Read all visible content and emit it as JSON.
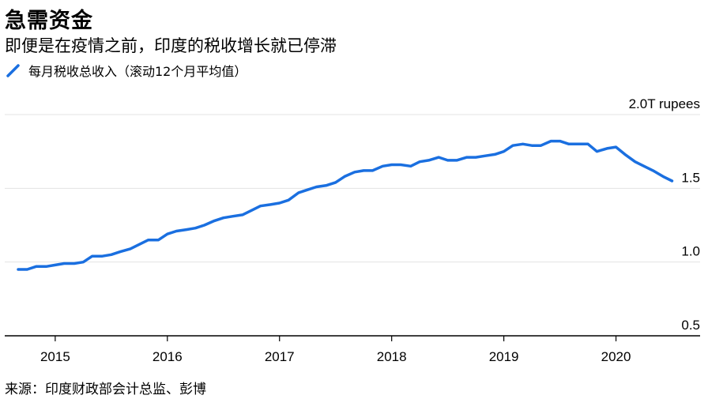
{
  "header": {
    "title": "急需资金",
    "subtitle": "即便是在疫情之前，印度的税收增长就已停滞"
  },
  "legend": {
    "label": "每月税收总收入（滚动12个月平均值）"
  },
  "footer": {
    "source": "来源：印度财政部会计总监、彭博"
  },
  "colors": {
    "line": "#1a6fe0",
    "grid": "#e3e3e3",
    "axis": "#000000"
  },
  "chart_data": {
    "type": "line",
    "title": "急需资金",
    "subtitle": "即便是在疫情之前，印度的税收增长就已停滞",
    "ylabel": "",
    "y_unit_label": "2.0T rupees",
    "ylim": [
      0.5,
      2.0
    ],
    "yticks": [
      0.5,
      1.0,
      1.5,
      2.0
    ],
    "ytick_labels": [
      "0.5",
      "1.0",
      "1.5",
      "2.0T rupees"
    ],
    "xlim": [
      2014.55,
      2020.75
    ],
    "xticks": [
      2015,
      2016,
      2017,
      2018,
      2019,
      2020
    ],
    "xtick_labels": [
      "2015",
      "2016",
      "2017",
      "2018",
      "2019",
      "2020"
    ],
    "grid": true,
    "legend_position": "top-left",
    "series": [
      {
        "name": "每月税收总收入（滚动12个月平均值）",
        "x": [
          2014.67,
          2014.75,
          2014.83,
          2014.92,
          2015.0,
          2015.08,
          2015.17,
          2015.25,
          2015.33,
          2015.42,
          2015.5,
          2015.58,
          2015.67,
          2015.75,
          2015.83,
          2015.92,
          2016.0,
          2016.08,
          2016.17,
          2016.25,
          2016.33,
          2016.42,
          2016.5,
          2016.58,
          2016.67,
          2016.75,
          2016.83,
          2016.92,
          2017.0,
          2017.08,
          2017.17,
          2017.25,
          2017.33,
          2017.42,
          2017.5,
          2017.58,
          2017.67,
          2017.75,
          2017.83,
          2017.92,
          2018.0,
          2018.08,
          2018.17,
          2018.25,
          2018.33,
          2018.42,
          2018.5,
          2018.58,
          2018.67,
          2018.75,
          2018.83,
          2018.92,
          2019.0,
          2019.08,
          2019.17,
          2019.25,
          2019.33,
          2019.42,
          2019.5,
          2019.58,
          2019.67,
          2019.75,
          2019.83,
          2019.92,
          2020.0,
          2020.08,
          2020.17,
          2020.25,
          2020.33,
          2020.42,
          2020.5
        ],
        "values": [
          0.95,
          0.95,
          0.97,
          0.97,
          0.98,
          0.99,
          0.99,
          1.0,
          1.04,
          1.04,
          1.05,
          1.07,
          1.09,
          1.12,
          1.15,
          1.15,
          1.19,
          1.21,
          1.22,
          1.23,
          1.25,
          1.28,
          1.3,
          1.31,
          1.32,
          1.35,
          1.38,
          1.39,
          1.4,
          1.42,
          1.47,
          1.49,
          1.51,
          1.52,
          1.54,
          1.58,
          1.61,
          1.62,
          1.62,
          1.65,
          1.66,
          1.66,
          1.65,
          1.68,
          1.69,
          1.71,
          1.69,
          1.69,
          1.71,
          1.71,
          1.72,
          1.73,
          1.75,
          1.79,
          1.8,
          1.79,
          1.79,
          1.82,
          1.82,
          1.8,
          1.8,
          1.8,
          1.75,
          1.77,
          1.78,
          1.73,
          1.68,
          1.65,
          1.62,
          1.58,
          1.55
        ]
      }
    ]
  }
}
